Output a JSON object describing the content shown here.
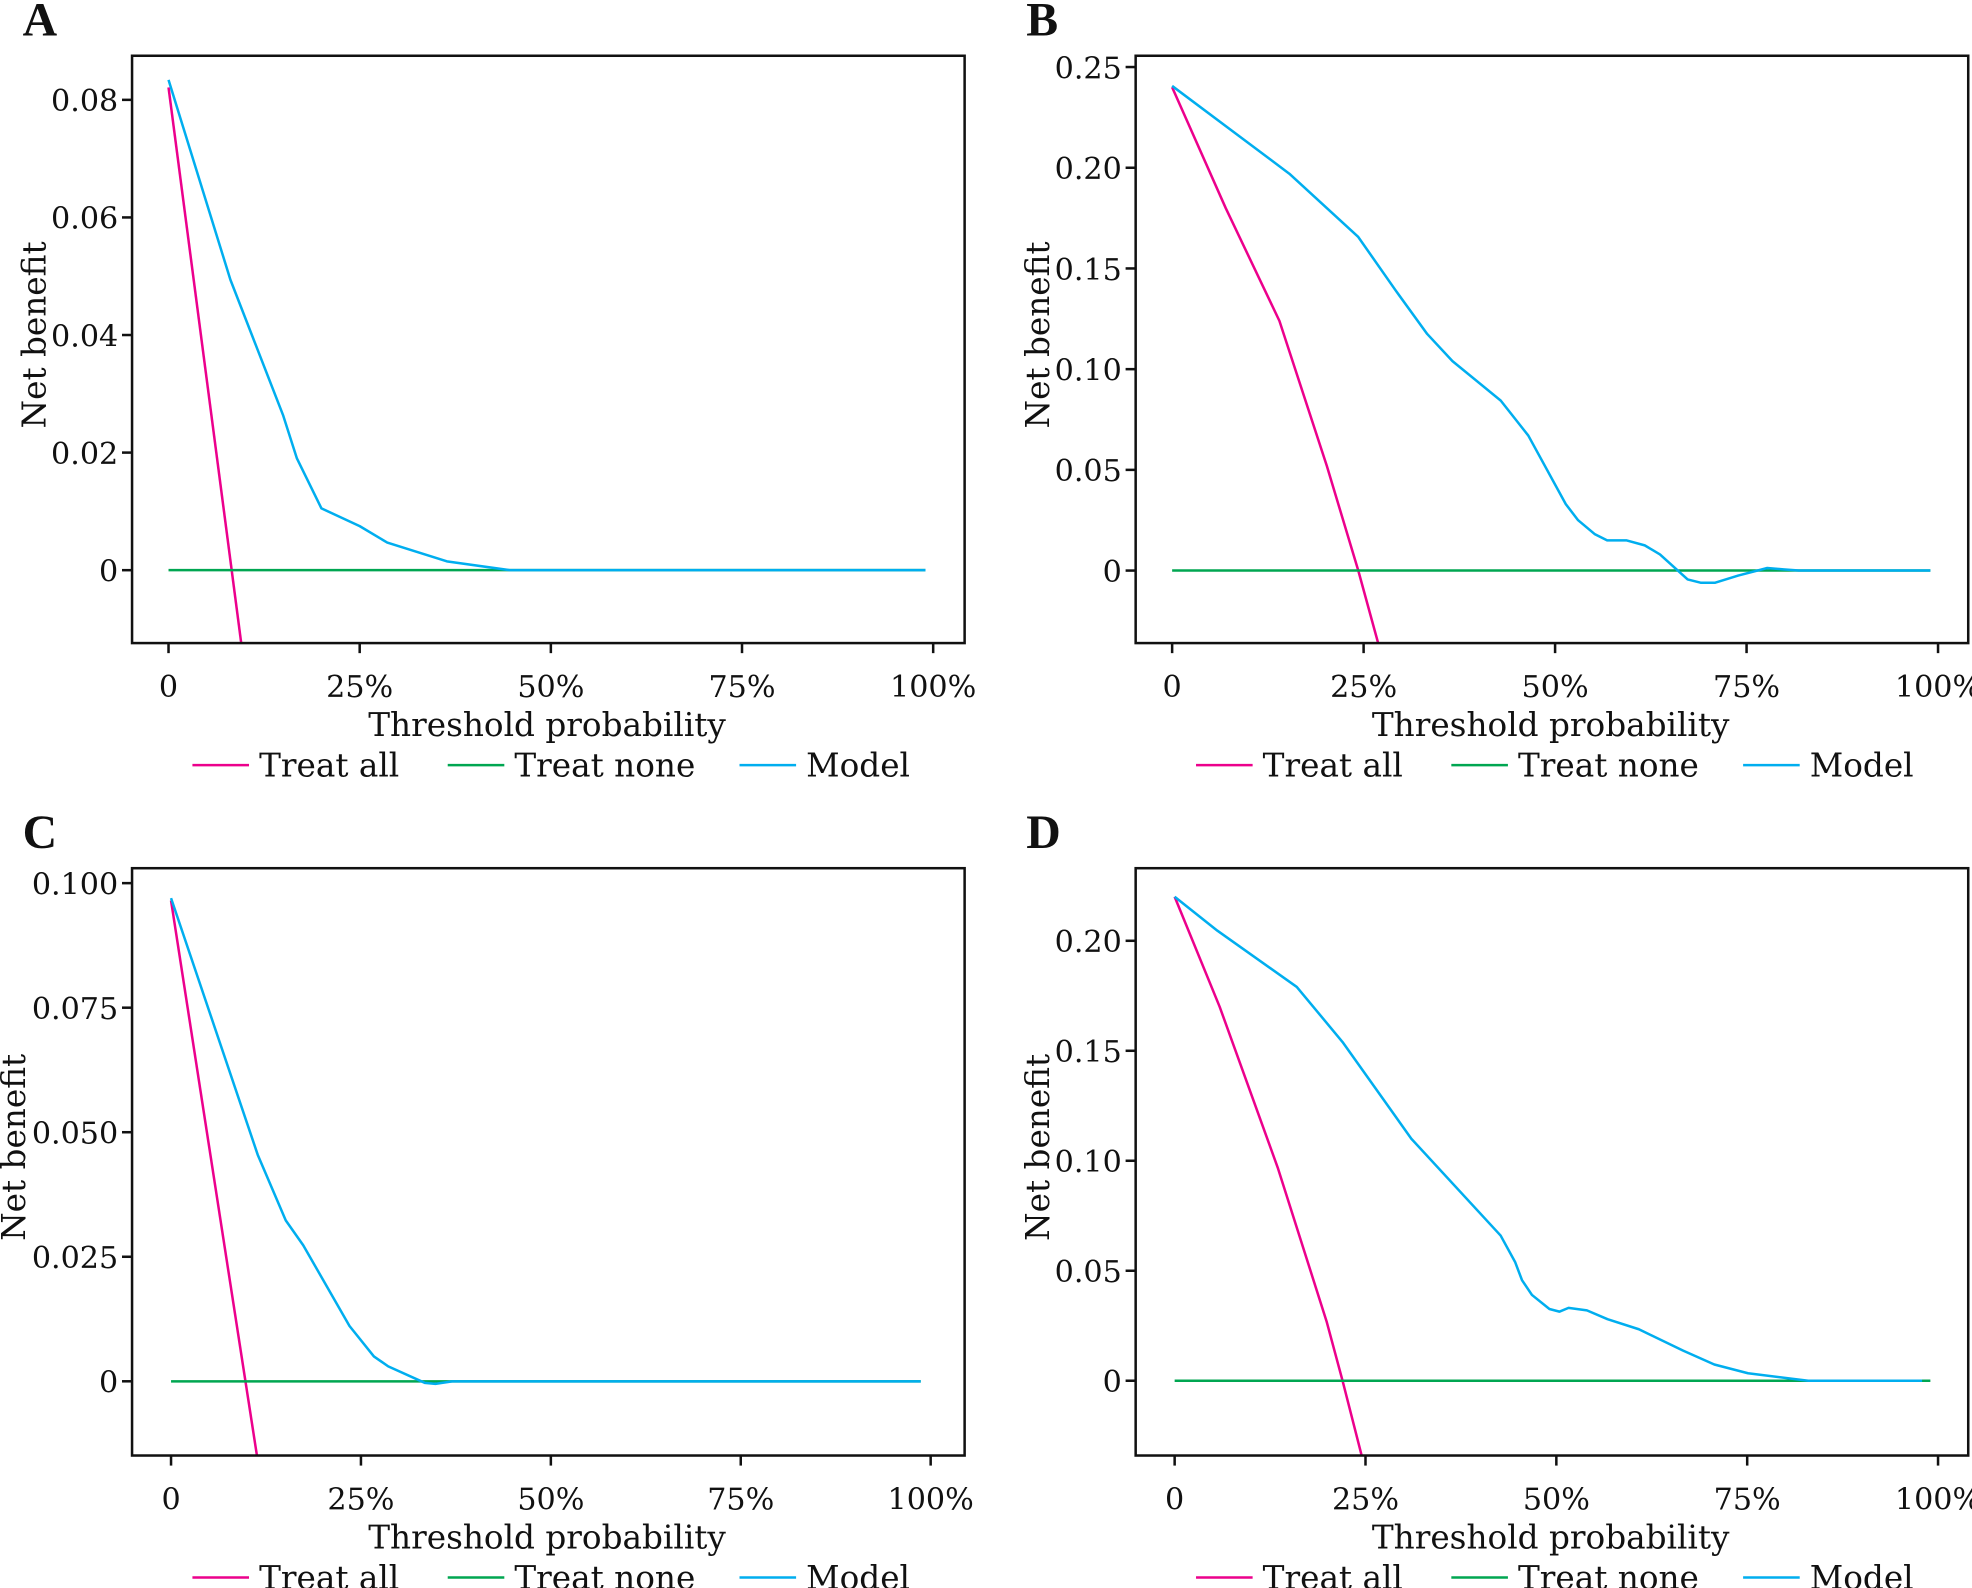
{
  "colors": {
    "treat_all": "#ec008c",
    "treat_none": "#00a651",
    "model": "#00aeef",
    "axis": "#111111"
  },
  "chart_data": [
    {
      "panel": "A",
      "type": "line",
      "xlabel": "Threshold probability",
      "ylabel": "Net benefit",
      "xlim": [
        0,
        1
      ],
      "ylim": [
        -0.0124,
        0.0875
      ],
      "xticks": [
        0,
        0.25,
        0.5,
        0.75,
        1
      ],
      "xtick_labels": [
        "0",
        "25%",
        "50%",
        "75%",
        "100%"
      ],
      "yticks": [
        0,
        0.02,
        0.04,
        0.06,
        0.08
      ],
      "ytick_labels": [
        "0",
        "0.02",
        "0.04",
        "0.06",
        "0.08"
      ],
      "legend": "bottom",
      "series": [
        {
          "name": "Treat all",
          "color_key": "treat_all",
          "points": [
            [
              0,
              0.0821
            ],
            [
              0.095,
              -0.0124
            ]
          ]
        },
        {
          "name": "Treat none",
          "color_key": "treat_none",
          "points": [
            [
              0,
              0
            ],
            [
              0.99,
              0
            ]
          ]
        },
        {
          "name": "Model",
          "color_key": "model",
          "points": [
            [
              0,
              0.0834
            ],
            [
              0.081,
              0.0494
            ],
            [
              0.15,
              0.0263
            ],
            [
              0.168,
              0.019
            ],
            [
              0.2,
              0.0105
            ],
            [
              0.25,
              0.0075
            ],
            [
              0.286,
              0.0047
            ],
            [
              0.364,
              0.0015
            ],
            [
              0.446,
              0
            ],
            [
              0.99,
              0
            ]
          ]
        }
      ]
    },
    {
      "panel": "B",
      "type": "line",
      "xlabel": "Threshold probability",
      "ylabel": "Net benefit",
      "xlim": [
        0,
        1
      ],
      "ylim": [
        -0.036,
        0.2556
      ],
      "xticks": [
        0,
        0.25,
        0.5,
        0.75,
        1
      ],
      "xtick_labels": [
        "0",
        "25%",
        "50%",
        "75%",
        "100%"
      ],
      "yticks": [
        0,
        0.05,
        0.1,
        0.15,
        0.2,
        0.25
      ],
      "ytick_labels": [
        "0",
        "0.05",
        "0.10",
        "0.15",
        "0.20",
        "0.25"
      ],
      "legend": "bottom",
      "series": [
        {
          "name": "Treat all",
          "color_key": "treat_all",
          "points": [
            [
              0,
              0.24
            ],
            [
              0.07,
              0.18
            ],
            [
              0.14,
              0.124
            ],
            [
              0.202,
              0.052
            ],
            [
              0.243,
              0
            ],
            [
              0.269,
              -0.036
            ]
          ]
        },
        {
          "name": "Treat none",
          "color_key": "treat_none",
          "points": [
            [
              0,
              0
            ],
            [
              0.99,
              0
            ]
          ]
        },
        {
          "name": "Model",
          "color_key": "model",
          "points": [
            [
              0,
              0.2406
            ],
            [
              0.153,
              0.197
            ],
            [
              0.243,
              0.1656
            ],
            [
              0.292,
              0.139
            ],
            [
              0.333,
              0.1175
            ],
            [
              0.366,
              0.104
            ],
            [
              0.429,
              0.0844
            ],
            [
              0.465,
              0.067
            ],
            [
              0.514,
              0.033
            ],
            [
              0.53,
              0.025
            ],
            [
              0.552,
              0.018
            ],
            [
              0.568,
              0.015
            ],
            [
              0.593,
              0.015
            ],
            [
              0.617,
              0.0125
            ],
            [
              0.637,
              0.008
            ],
            [
              0.673,
              -0.0044
            ],
            [
              0.69,
              -0.006
            ],
            [
              0.709,
              -0.006
            ],
            [
              0.739,
              -0.0025
            ],
            [
              0.777,
              0.0013
            ],
            [
              0.798,
              0.0006
            ],
            [
              0.818,
              0
            ],
            [
              0.99,
              0
            ]
          ]
        }
      ]
    },
    {
      "panel": "C",
      "type": "line",
      "xlabel": "Threshold probability",
      "ylabel": "Net benefit",
      "xlim": [
        0,
        1
      ],
      "ylim": [
        -0.0149,
        0.103
      ],
      "xticks": [
        0,
        0.25,
        0.5,
        0.75,
        1
      ],
      "xtick_labels": [
        "0",
        "25%",
        "50%",
        "75%",
        "100%"
      ],
      "yticks": [
        0,
        0.025,
        0.05,
        0.075,
        0.1
      ],
      "ytick_labels": [
        "0",
        "0.025",
        "0.050",
        "0.075",
        "0.100"
      ],
      "legend": "bottom",
      "series": [
        {
          "name": "Treat all",
          "color_key": "treat_all",
          "points": [
            [
              0,
              0.0965
            ],
            [
              0.113,
              -0.0149
            ]
          ]
        },
        {
          "name": "Treat none",
          "color_key": "treat_none",
          "points": [
            [
              0,
              0
            ],
            [
              0.987,
              0
            ]
          ]
        },
        {
          "name": "Model",
          "color_key": "model",
          "points": [
            [
              0,
              0.097
            ],
            [
              0.114,
              0.0455
            ],
            [
              0.151,
              0.0323
            ],
            [
              0.174,
              0.0273
            ],
            [
              0.235,
              0.0111
            ],
            [
              0.267,
              0.005
            ],
            [
              0.286,
              0.003
            ],
            [
              0.334,
              -0.0003
            ],
            [
              0.348,
              -0.0005
            ],
            [
              0.37,
              0
            ],
            [
              0.987,
              0
            ]
          ]
        }
      ]
    },
    {
      "panel": "D",
      "type": "line",
      "xlabel": "Threshold probability",
      "ylabel": "Net benefit",
      "xlim": [
        0,
        1
      ],
      "ylim": [
        -0.034,
        0.233
      ],
      "xticks": [
        0,
        0.25,
        0.5,
        0.75,
        1
      ],
      "xtick_labels": [
        "0",
        "25%",
        "50%",
        "75%",
        "100%"
      ],
      "yticks": [
        0,
        0.05,
        0.1,
        0.15,
        0.2
      ],
      "ytick_labels": [
        "0",
        "0.05",
        "0.10",
        "0.15",
        "0.20"
      ],
      "legend": "bottom",
      "series": [
        {
          "name": "Treat all",
          "color_key": "treat_all",
          "points": [
            [
              0,
              0.22
            ],
            [
              0.059,
              0.17
            ],
            [
              0.135,
              0.097
            ],
            [
              0.199,
              0.027
            ],
            [
              0.22,
              0
            ],
            [
              0.245,
              -0.034
            ]
          ]
        },
        {
          "name": "Treat none",
          "color_key": "treat_none",
          "points": [
            [
              0,
              0
            ],
            [
              0.99,
              0
            ]
          ]
        },
        {
          "name": "Model",
          "color_key": "model",
          "points": [
            [
              0,
              0.22
            ],
            [
              0.056,
              0.2046
            ],
            [
              0.16,
              0.179
            ],
            [
              0.22,
              0.154
            ],
            [
              0.31,
              0.11
            ],
            [
              0.427,
              0.066
            ],
            [
              0.446,
              0.054
            ],
            [
              0.455,
              0.0457
            ],
            [
              0.468,
              0.039
            ],
            [
              0.491,
              0.0326
            ],
            [
              0.504,
              0.0314
            ],
            [
              0.516,
              0.0331
            ],
            [
              0.54,
              0.032
            ],
            [
              0.567,
              0.028
            ],
            [
              0.608,
              0.0234
            ],
            [
              0.666,
              0.0137
            ],
            [
              0.707,
              0.0074
            ],
            [
              0.751,
              0.0034
            ],
            [
              0.83,
              0
            ],
            [
              0.979,
              0
            ]
          ]
        }
      ]
    }
  ]
}
